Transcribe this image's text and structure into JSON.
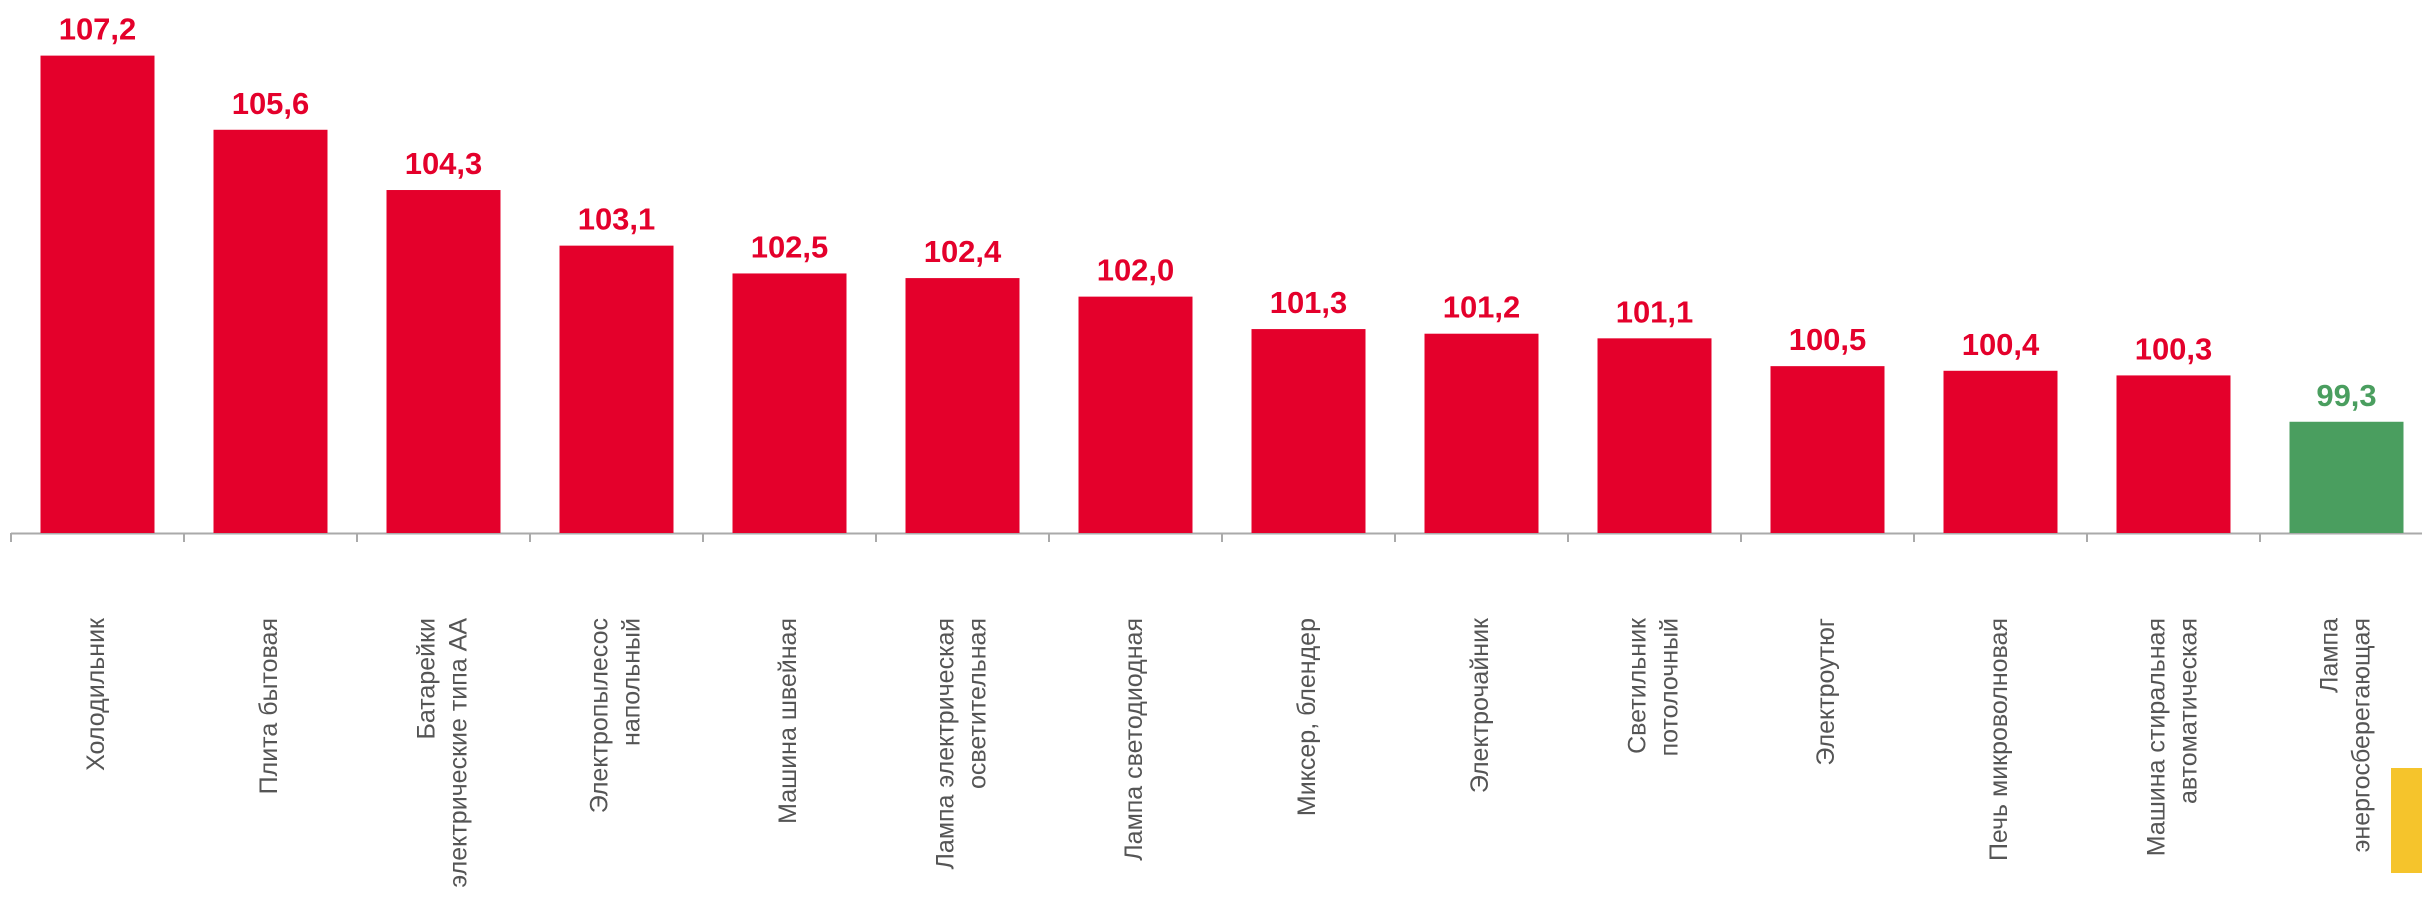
{
  "chart_data": {
    "type": "bar",
    "categories": [
      "Холодильник",
      "Плита бытовая",
      "Батарейки\nэлектрические типа АА",
      "Электропылесос\nнапольный",
      "Машина швейная",
      "Лампа электрическая\nосветительная",
      "Лампа светодиодная",
      "Миксер, блендер",
      "Электрочайник",
      "Светильник\nпотолочный",
      "Электроутюг",
      "Печь микроволновая",
      "Машина стиральная\nавтоматическая",
      "Лампа\nэнергосберегающая"
    ],
    "values": [
      107.2,
      105.6,
      104.3,
      103.1,
      102.5,
      102.4,
      102.0,
      101.3,
      101.2,
      101.1,
      100.5,
      100.4,
      100.3,
      99.3
    ],
    "value_labels": [
      "107,2",
      "105,6",
      "104,3",
      "103,1",
      "102,5",
      "102,4",
      "102,0",
      "101,3",
      "101,2",
      "101,1",
      "100,5",
      "100,4",
      "100,3",
      "99,3"
    ],
    "colors": [
      "#e4002b",
      "#e4002b",
      "#e4002b",
      "#e4002b",
      "#e4002b",
      "#e4002b",
      "#e4002b",
      "#e4002b",
      "#e4002b",
      "#e4002b",
      "#e4002b",
      "#e4002b",
      "#e4002b",
      "#4a9e5f"
    ],
    "ylim": [
      96.9,
      108.4
    ]
  }
}
